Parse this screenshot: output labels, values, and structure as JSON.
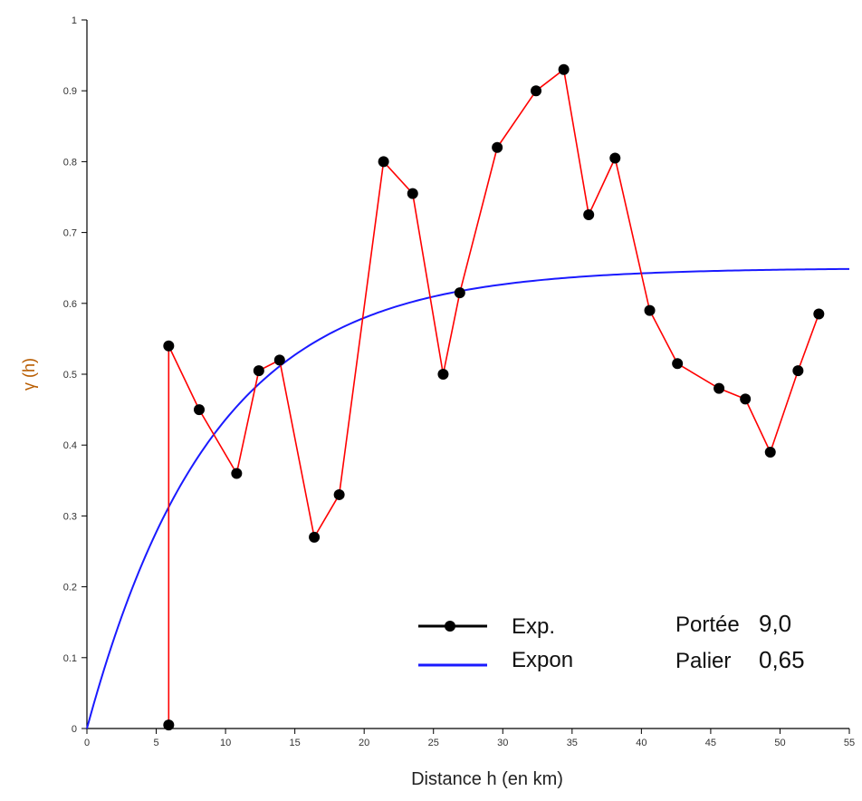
{
  "chart_data": {
    "type": "line",
    "xlabel": "Distance h (en km)",
    "ylabel": "γ (h)",
    "xlim": [
      0,
      55
    ],
    "ylim": [
      0,
      1
    ],
    "xticks": [
      0,
      5,
      10,
      15,
      20,
      25,
      30,
      35,
      40,
      45,
      50,
      55
    ],
    "yticks": [
      0,
      0.1,
      0.2,
      0.3,
      0.4,
      0.5,
      0.6,
      0.7,
      0.8,
      0.9,
      1
    ],
    "ytick_labels": [
      "0",
      "0.1",
      "0.2",
      "0.3",
      "0.4",
      "0.5",
      "0.6",
      "0.7",
      "0.8",
      "0.9",
      "1"
    ],
    "grid": false,
    "legend_position": "bottom-center",
    "series": [
      {
        "name": "Exp.",
        "kind": "points-with-line",
        "line_color": "#ff0000",
        "marker_color": "#000000",
        "x": [
          5.9,
          5.9,
          8.1,
          10.8,
          12.4,
          13.9,
          16.4,
          18.2,
          21.4,
          23.5,
          25.7,
          26.9,
          29.6,
          32.4,
          34.4,
          36.2,
          38.1,
          40.6,
          42.6,
          45.6,
          47.5,
          49.3,
          51.3,
          52.8
        ],
        "y": [
          0.005,
          0.54,
          0.45,
          0.36,
          0.505,
          0.52,
          0.27,
          0.33,
          0.8,
          0.755,
          0.5,
          0.615,
          0.82,
          0.9,
          0.93,
          0.725,
          0.805,
          0.59,
          0.515,
          0.48,
          0.465,
          0.39,
          0.505,
          0.585
        ]
      },
      {
        "name": "Expon",
        "kind": "exponential-model",
        "line_color": "#1a1aff",
        "sill": 0.65,
        "range": 9.0,
        "x_max": 55
      }
    ],
    "annotations": [
      {
        "label": "Portée",
        "value": "9,0"
      },
      {
        "label": "Palier",
        "value": "0,65"
      }
    ]
  }
}
